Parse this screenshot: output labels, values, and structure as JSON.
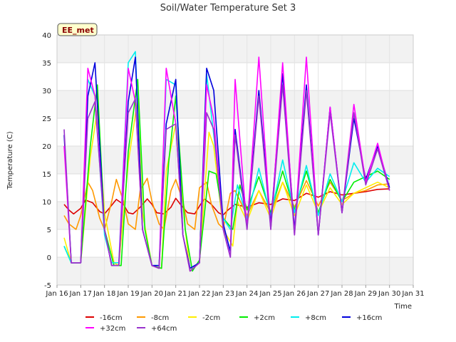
{
  "chart_data": {
    "type": "line",
    "title": "Soil/Water Temperature Set 3",
    "xlabel": "Time",
    "ylabel": "Temperature (C)",
    "badge": "EE_met",
    "xlim": [
      16,
      31
    ],
    "ylim": [
      -5,
      40
    ],
    "x_ticks": [
      16,
      17,
      18,
      19,
      20,
      21,
      22,
      23,
      24,
      25,
      26,
      27,
      28,
      29,
      30,
      31
    ],
    "x_tick_labels": [
      "Jan 16",
      "Jan 17",
      "Jan 18",
      "Jan 19",
      "Jan 20",
      "Jan 21",
      "Jan 22",
      "Jan 23",
      "Jan 24",
      "Jan 25",
      "Jan 26",
      "Jan 27",
      "Jan 28",
      "Jan 29",
      "Jan 30",
      "Jan 31"
    ],
    "y_ticks": [
      -5,
      0,
      5,
      10,
      15,
      20,
      25,
      30,
      35,
      40
    ],
    "y_tick_labels": [
      "-5",
      "0",
      "5",
      "10",
      "15",
      "20",
      "25",
      "30",
      "35",
      "40"
    ],
    "grid": true,
    "legend_position": "bottom",
    "series": [
      {
        "name": "-16cm",
        "color": "#dd0000",
        "x": [
          16.3,
          16.5,
          16.7,
          17.0,
          17.2,
          17.5,
          17.8,
          18.0,
          18.2,
          18.5,
          18.8,
          19.0,
          19.2,
          19.5,
          19.8,
          20.0,
          20.2,
          20.5,
          20.8,
          21.0,
          21.2,
          21.5,
          21.8,
          22.0,
          22.2,
          22.5,
          22.8,
          23.0,
          23.2,
          23.5,
          24.0,
          24.5,
          25.0,
          25.5,
          26.0,
          26.5,
          27.0,
          27.5,
          28.0,
          28.5,
          29.0,
          29.5,
          30.0
        ],
        "values": [
          9.5,
          8.5,
          7.8,
          8.8,
          10.3,
          9.8,
          8.2,
          7.8,
          8.8,
          10.4,
          9.5,
          8.0,
          7.8,
          9.0,
          10.5,
          9.5,
          8.0,
          7.8,
          9.0,
          10.6,
          9.5,
          8.0,
          7.8,
          9.2,
          10.5,
          9.5,
          8.0,
          7.6,
          8.5,
          9.5,
          9.0,
          9.8,
          9.5,
          10.5,
          10.2,
          11.5,
          10.8,
          11.8,
          11.2,
          11.5,
          11.8,
          12.2,
          12.3
        ]
      },
      {
        "name": "-8cm",
        "color": "#ff9900",
        "x": [
          16.3,
          16.5,
          16.8,
          17.0,
          17.3,
          17.5,
          17.8,
          18.0,
          18.3,
          18.5,
          18.8,
          19.0,
          19.3,
          19.5,
          19.8,
          20.0,
          20.3,
          20.5,
          20.8,
          21.0,
          21.3,
          21.5,
          21.8,
          22.0,
          22.3,
          22.5,
          22.8,
          23.0,
          23.3,
          23.5,
          24.0,
          24.5,
          25.0,
          25.5,
          26.0,
          26.5,
          27.0,
          27.5,
          28.0,
          28.5,
          29.0,
          29.5,
          30.0
        ],
        "values": [
          7.5,
          6.0,
          5.0,
          7.5,
          13.5,
          12.0,
          7.0,
          5.0,
          10.0,
          14.0,
          10.0,
          6.0,
          5.0,
          12.0,
          14.2,
          10.0,
          6.0,
          5.0,
          12.0,
          14.0,
          10.0,
          6.0,
          5.0,
          12.5,
          13.5,
          9.5,
          6.0,
          5.2,
          11.5,
          12.0,
          7.5,
          12.0,
          8.0,
          13.5,
          9.0,
          13.8,
          9.2,
          13.5,
          10.2,
          11.5,
          12.0,
          13.0,
          13.2
        ]
      },
      {
        "name": "-2cm",
        "color": "#ffee00",
        "x": [
          16.3,
          16.6,
          17.0,
          17.4,
          17.7,
          18.0,
          18.4,
          18.6,
          19.0,
          19.4,
          19.6,
          20.0,
          20.4,
          20.6,
          21.0,
          21.4,
          21.6,
          22.0,
          22.4,
          22.6,
          23.0,
          23.4,
          23.6,
          24.0,
          24.5,
          25.0,
          25.5,
          26.0,
          26.5,
          27.0,
          27.5,
          28.0,
          28.5,
          29.0,
          29.5,
          30.0
        ],
        "values": [
          3.5,
          -1.0,
          -1.0,
          18.0,
          26.5,
          8.0,
          -1.0,
          -1.5,
          17.0,
          28.5,
          8.0,
          -1.5,
          -2.0,
          15.5,
          24.0,
          5.0,
          -2.5,
          -1.0,
          22.5,
          20.0,
          5.0,
          2.0,
          10.0,
          6.5,
          12.0,
          7.0,
          13.5,
          7.5,
          13.0,
          8.0,
          12.5,
          9.5,
          11.5,
          12.5,
          13.5,
          12.5
        ]
      },
      {
        "name": "+2cm",
        "color": "#00ee00",
        "x": [
          16.3,
          16.6,
          17.0,
          17.4,
          17.7,
          18.0,
          18.4,
          18.7,
          19.0,
          19.4,
          19.7,
          20.0,
          20.4,
          20.7,
          21.0,
          21.4,
          21.7,
          22.0,
          22.4,
          22.7,
          23.0,
          23.4,
          23.7,
          24.0,
          24.5,
          25.0,
          25.5,
          26.0,
          26.5,
          27.0,
          27.5,
          28.0,
          28.5,
          29.0,
          29.5,
          30.0
        ],
        "values": [
          2.0,
          -1.0,
          -1.0,
          20.0,
          31.0,
          5.0,
          -1.5,
          -1.5,
          19.0,
          32.0,
          5.0,
          -1.5,
          -2.0,
          17.0,
          29.0,
          5.0,
          -2.5,
          -0.5,
          15.5,
          15.0,
          7.0,
          5.0,
          13.0,
          8.5,
          14.5,
          8.0,
          15.5,
          8.5,
          15.5,
          8.0,
          14.0,
          10.0,
          13.5,
          14.5,
          15.5,
          14.0
        ]
      },
      {
        "name": "+8cm",
        "color": "#00eeee",
        "x": [
          16.3,
          16.6,
          17.0,
          17.3,
          17.6,
          18.0,
          18.3,
          18.6,
          19.0,
          19.3,
          19.6,
          20.0,
          20.3,
          20.6,
          21.0,
          21.3,
          21.6,
          22.0,
          22.3,
          22.6,
          23.0,
          23.3,
          23.6,
          24.0,
          24.5,
          25.0,
          25.5,
          26.0,
          26.5,
          27.0,
          27.5,
          28.0,
          28.5,
          29.0,
          29.5,
          30.0
        ],
        "values": [
          2.0,
          -1.0,
          -1.0,
          32.0,
          29.0,
          4.0,
          -1.0,
          -1.0,
          35.0,
          37.0,
          5.0,
          -1.5,
          -1.5,
          32.0,
          31.0,
          4.0,
          -2.0,
          -1.0,
          33.0,
          22.0,
          7.0,
          5.0,
          13.0,
          7.0,
          16.0,
          7.5,
          17.5,
          8.0,
          16.5,
          7.5,
          15.0,
          10.0,
          17.0,
          13.5,
          16.0,
          14.5
        ]
      },
      {
        "name": "+16cm",
        "color": "#0000dd",
        "x": [
          16.3,
          16.6,
          17.0,
          17.3,
          17.6,
          18.0,
          18.3,
          18.6,
          19.0,
          19.3,
          19.6,
          20.0,
          20.3,
          20.6,
          21.0,
          21.3,
          21.6,
          22.0,
          22.3,
          22.6,
          23.0,
          23.3,
          23.5,
          24.0,
          24.5,
          25.0,
          25.5,
          26.0,
          26.5,
          27.0,
          27.5,
          28.0,
          28.5,
          29.0,
          29.5,
          30.0
        ],
        "values": [
          22.0,
          -1.0,
          -1.0,
          29.0,
          35.0,
          5.0,
          -1.5,
          -1.5,
          28.0,
          36.0,
          5.0,
          -1.5,
          -1.5,
          24.0,
          32.0,
          4.0,
          -2.0,
          -1.0,
          34.0,
          30.0,
          6.0,
          1.0,
          23.0,
          5.5,
          30.0,
          6.0,
          33.0,
          5.0,
          31.0,
          4.0,
          27.0,
          8.0,
          25.0,
          14.0,
          20.0,
          12.5
        ]
      },
      {
        "name": "+32cm",
        "color": "#ff00ff",
        "x": [
          16.3,
          16.6,
          17.0,
          17.3,
          17.6,
          18.0,
          18.3,
          18.6,
          19.0,
          19.3,
          19.6,
          20.0,
          20.3,
          20.6,
          21.0,
          21.3,
          21.6,
          22.0,
          22.3,
          22.6,
          23.0,
          23.3,
          23.5,
          24.0,
          24.5,
          25.0,
          25.5,
          26.0,
          26.5,
          27.0,
          27.5,
          28.0,
          28.5,
          29.0,
          29.5,
          30.0
        ],
        "values": [
          20.0,
          -1.0,
          -1.0,
          34.0,
          29.0,
          5.0,
          -1.5,
          -1.5,
          34.0,
          28.0,
          5.0,
          -1.5,
          -2.0,
          34.0,
          24.0,
          4.0,
          -2.5,
          -1.0,
          31.0,
          25.0,
          5.0,
          0.0,
          32.0,
          5.0,
          36.0,
          5.0,
          35.0,
          4.0,
          36.0,
          4.0,
          27.0,
          8.0,
          27.5,
          13.5,
          20.5,
          12.0
        ]
      },
      {
        "name": "+64cm",
        "color": "#9933cc",
        "x": [
          16.3,
          16.6,
          17.0,
          17.3,
          17.6,
          18.0,
          18.3,
          18.6,
          19.0,
          19.3,
          19.6,
          20.0,
          20.3,
          20.6,
          21.0,
          21.3,
          21.6,
          22.0,
          22.3,
          22.6,
          23.0,
          23.3,
          23.5,
          24.0,
          24.5,
          25.0,
          25.5,
          26.0,
          26.5,
          27.0,
          27.5,
          28.0,
          28.5,
          29.0,
          29.5,
          30.0
        ],
        "values": [
          23.0,
          -1.0,
          -1.0,
          25.0,
          28.0,
          5.0,
          -1.5,
          -1.5,
          26.0,
          28.5,
          5.0,
          -1.5,
          -2.0,
          23.0,
          24.0,
          4.0,
          -2.5,
          -1.0,
          26.0,
          23.0,
          5.0,
          0.0,
          22.0,
          5.0,
          29.0,
          5.0,
          31.0,
          4.0,
          30.0,
          4.0,
          26.0,
          8.0,
          26.0,
          13.0,
          19.5,
          12.0
        ]
      }
    ]
  }
}
